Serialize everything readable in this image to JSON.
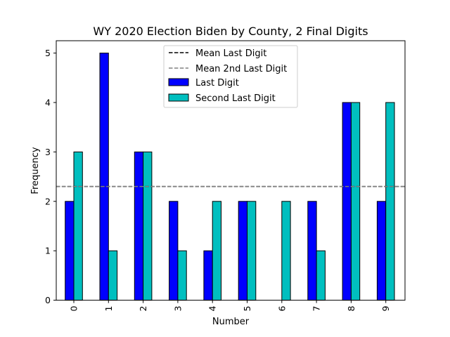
{
  "chart_data": {
    "type": "bar",
    "title": "WY 2020 Election Biden by County, 2 Final Digits",
    "xlabel": "Number",
    "ylabel": "Frequency",
    "categories": [
      "0",
      "1",
      "2",
      "3",
      "4",
      "5",
      "6",
      "7",
      "8",
      "9"
    ],
    "yticks": [
      "0",
      "1",
      "2",
      "3",
      "4",
      "5"
    ],
    "ylim": [
      0,
      5.25
    ],
    "series": [
      {
        "name": "Last Digit",
        "color": "#0000ff",
        "values": [
          2,
          5,
          3,
          2,
          1,
          2,
          0,
          2,
          4,
          2
        ]
      },
      {
        "name": "Second Last Digit",
        "color": "#00bfbf",
        "values": [
          3,
          1,
          3,
          1,
          2,
          2,
          2,
          1,
          4,
          4
        ]
      }
    ],
    "reference_lines": [
      {
        "name": "Mean Last Digit",
        "color": "#000000",
        "style": "dashed",
        "value": 2.3
      },
      {
        "name": "Mean 2nd Last Digit",
        "color": "#808080",
        "style": "dashed",
        "value": 2.3
      }
    ],
    "legend": {
      "placement": "upper-center",
      "entries": [
        {
          "label": "Mean Last Digit",
          "kind": "line",
          "color": "#000000"
        },
        {
          "label": "Mean 2nd Last Digit",
          "kind": "line",
          "color": "#808080"
        },
        {
          "label": "Last Digit",
          "kind": "patch",
          "color": "#0000ff"
        },
        {
          "label": "Second Last Digit",
          "kind": "patch",
          "color": "#00bfbf"
        }
      ]
    },
    "grid": false
  }
}
